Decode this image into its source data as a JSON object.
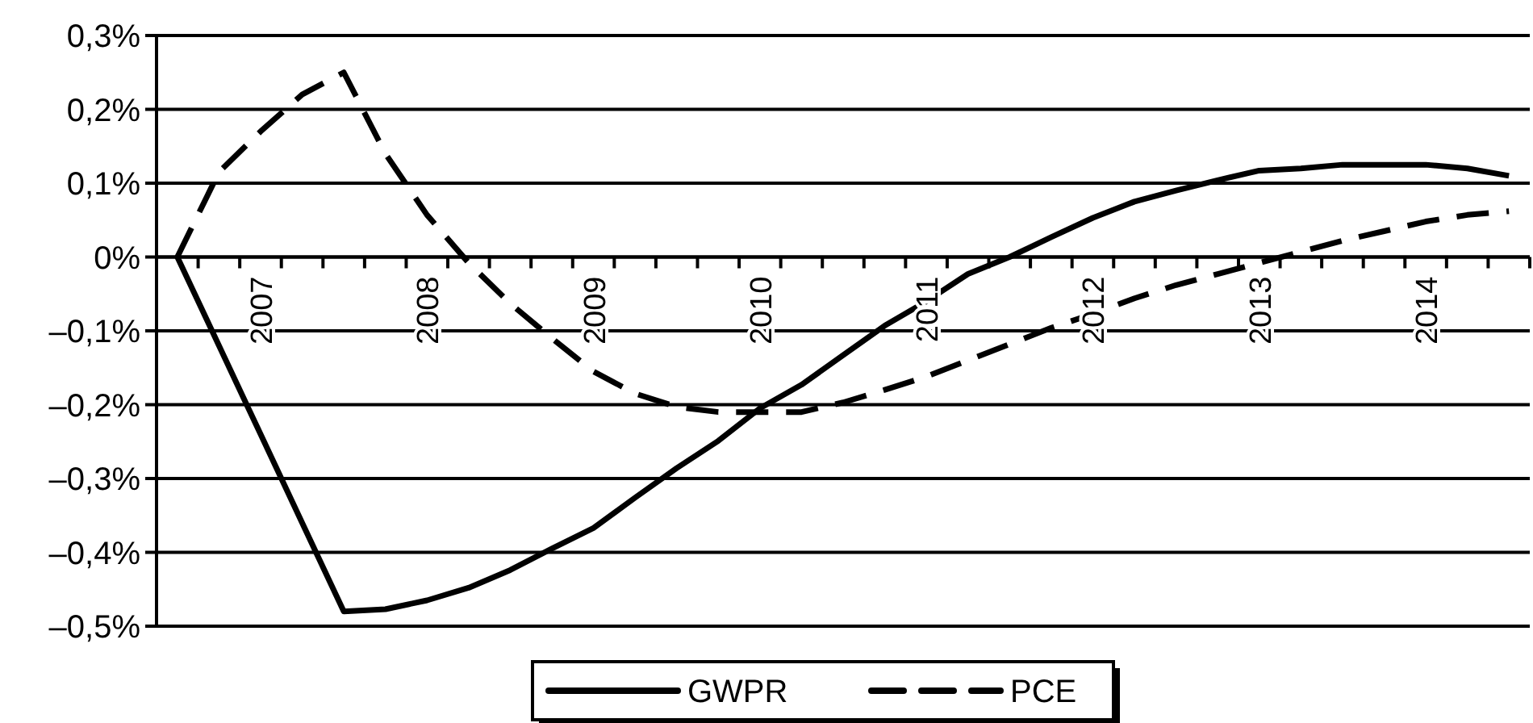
{
  "chart_data": {
    "type": "line",
    "categories": [
      null,
      null,
      "2007",
      null,
      null,
      null,
      "2008",
      null,
      null,
      null,
      "2009",
      null,
      null,
      null,
      "2010",
      null,
      null,
      null,
      "2011",
      null,
      null,
      null,
      "2012",
      null,
      null,
      null,
      "2013",
      null,
      null,
      null,
      "2014",
      null,
      null
    ],
    "series": [
      {
        "name": "GWPR",
        "color": "#000000",
        "line_style": "solid",
        "values": [
          0,
          -0.12,
          -0.24,
          -0.36,
          -0.48,
          -0.477,
          -0.465,
          -0.448,
          -0.424,
          -0.395,
          -0.367,
          -0.326,
          -0.286,
          -0.249,
          -0.205,
          -0.173,
          -0.133,
          -0.093,
          -0.06,
          -0.023,
          0.0,
          0.027,
          0.053,
          0.075,
          0.09,
          0.104,
          0.117,
          0.12,
          0.125,
          0.125,
          0.125,
          0.12,
          0.11
        ]
      },
      {
        "name": "PCE",
        "color": "#000000",
        "line_style": "dashed",
        "values": [
          0,
          0.115,
          0.17,
          0.22,
          0.25,
          0.14,
          0.057,
          -0.008,
          -0.063,
          -0.11,
          -0.155,
          -0.185,
          -0.203,
          -0.21,
          -0.21,
          -0.21,
          -0.197,
          -0.18,
          -0.162,
          -0.14,
          -0.118,
          -0.096,
          -0.077,
          -0.056,
          -0.038,
          -0.023,
          -0.008,
          0.007,
          0.022,
          0.035,
          0.048,
          0.057,
          0.062
        ]
      }
    ],
    "ylim": [
      -0.5,
      0.3
    ],
    "yticks": [
      {
        "value": 0.3,
        "label": "0,3%"
      },
      {
        "value": 0.2,
        "label": "0,2%"
      },
      {
        "value": 0.1,
        "label": "0,1%"
      },
      {
        "value": 0,
        "label": "0%"
      },
      {
        "value": -0.1,
        "label": "–0,1%"
      },
      {
        "value": -0.2,
        "label": "–0,2%"
      },
      {
        "value": -0.3,
        "label": "–0,3%"
      },
      {
        "value": -0.4,
        "label": "–0,4%"
      },
      {
        "value": -0.5,
        "label": "–0,5%"
      }
    ],
    "grid": "y",
    "legend": "bottom",
    "marker": "none"
  }
}
